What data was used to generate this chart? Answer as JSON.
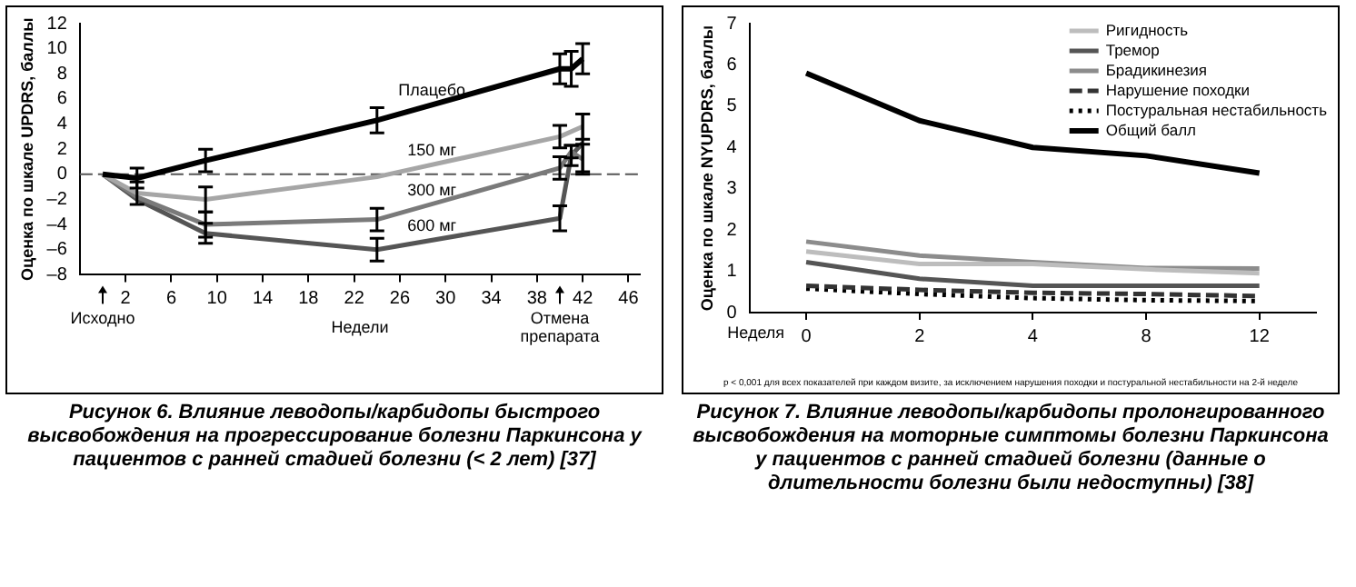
{
  "chart_data": [
    {
      "type": "line",
      "title": "Рисунок 6. Влияние леводопы/карбидопы быстрого высвобождения на прогрессирование болезни Паркинсона у пациентов с ранней стадией болезни (< 2 лет) [37]",
      "ylabel": "Оценка по шкале UPDRS, баллы",
      "xlabel": "Недели",
      "x": [
        0,
        3,
        9,
        24,
        40,
        41,
        42
      ],
      "xlim": [
        -2,
        47
      ],
      "xticks": [
        2,
        6,
        10,
        14,
        18,
        22,
        26,
        30,
        34,
        38,
        42,
        46
      ],
      "ylim": [
        -8,
        12
      ],
      "yticks": [
        {
          "value": -8,
          "label": "–8"
        },
        {
          "value": -6,
          "label": "–6"
        },
        {
          "value": -4,
          "label": "–4"
        },
        {
          "value": -2,
          "label": "–2"
        },
        0,
        2,
        4,
        6,
        8,
        10,
        12
      ],
      "grid": false,
      "legend": false,
      "marker": "none",
      "ref_lines": [
        {
          "axis": "y",
          "value": 0,
          "color": "#555555",
          "line_style": "dashed"
        }
      ],
      "annotations": [
        {
          "text": "Исходно",
          "x": 0
        },
        {
          "text": "Отмена препарата",
          "x": 40
        }
      ],
      "series": [
        {
          "name": "Плацебо",
          "color": "#000000",
          "values": [
            0,
            -0.3,
            1.1,
            4.3,
            8.4,
            8.4,
            9.2
          ],
          "errors": [
            null,
            0.8,
            0.9,
            1.0,
            1.2,
            1.4,
            1.2
          ]
        },
        {
          "name": "150 мг",
          "color": "#a6a6a6",
          "values": [
            0,
            -1.5,
            -2,
            -0.2,
            3,
            null,
            3.8
          ],
          "errors": [
            null,
            0.9,
            1.0,
            null,
            0.9,
            null,
            1.0
          ]
        },
        {
          "name": "300 мг",
          "color": "#7a7a7a",
          "values": [
            0,
            -1.8,
            -4,
            -3.6,
            0.5,
            1.8,
            1.2
          ],
          "errors": [
            null,
            null,
            1.0,
            0.9,
            0.9,
            0.5,
            1.2
          ]
        },
        {
          "name": "600 мг",
          "color": "#555555",
          "values": [
            0,
            -2,
            -4.7,
            -6,
            -3.5,
            1.5,
            2.5
          ],
          "errors": [
            null,
            null,
            0.8,
            0.9,
            1.0,
            0.8,
            2.3
          ]
        }
      ]
    },
    {
      "type": "line",
      "title": "Рисунок 7. Влияние леводопы/карбидопы пролонгированного высвобождения на моторные симптомы болезни Паркинсона у пациентов с ранней стадией болезни (данные о длительности болезни были недоступны) [38]",
      "ylabel": "Оценка по шкале NYUPDRS, баллы",
      "xlabel": "Неделя",
      "categories": [
        "0",
        "2",
        "4",
        "8",
        "12"
      ],
      "ylim": [
        0,
        7
      ],
      "yticks": [
        0,
        1,
        2,
        3,
        4,
        5,
        6,
        7
      ],
      "grid": false,
      "legend": "top right",
      "marker": "none",
      "annotations": [
        "p < 0,001 для всех показателей при каждом визите, за исключением нарушения походки и постуральной нестабильности на 2-й неделе"
      ],
      "series": [
        {
          "name": "Ригидность",
          "color": "#bdbdbd",
          "values": [
            1.48,
            1.18,
            1.18,
            1.05,
            0.95
          ]
        },
        {
          "name": "Тремор",
          "color": "#555555",
          "values": [
            1.22,
            0.82,
            0.65,
            0.65,
            0.65
          ]
        },
        {
          "name": "Брадикинезия",
          "color": "#8c8c8c",
          "values": [
            1.72,
            1.38,
            1.22,
            1.08,
            1.07
          ]
        },
        {
          "name": "Нарушение походки",
          "color": "#333333",
          "line_style": "dashed",
          "values": [
            0.65,
            0.55,
            0.48,
            0.45,
            0.4
          ]
        },
        {
          "name": "Постуральная нестабильность",
          "color": "#000000",
          "line_style": "dotted",
          "values": [
            0.58,
            0.45,
            0.35,
            0.3,
            0.28
          ]
        },
        {
          "name": "Общий балл",
          "color": "#000000",
          "values": [
            5.8,
            4.65,
            4.0,
            3.8,
            3.38
          ]
        }
      ]
    }
  ]
}
